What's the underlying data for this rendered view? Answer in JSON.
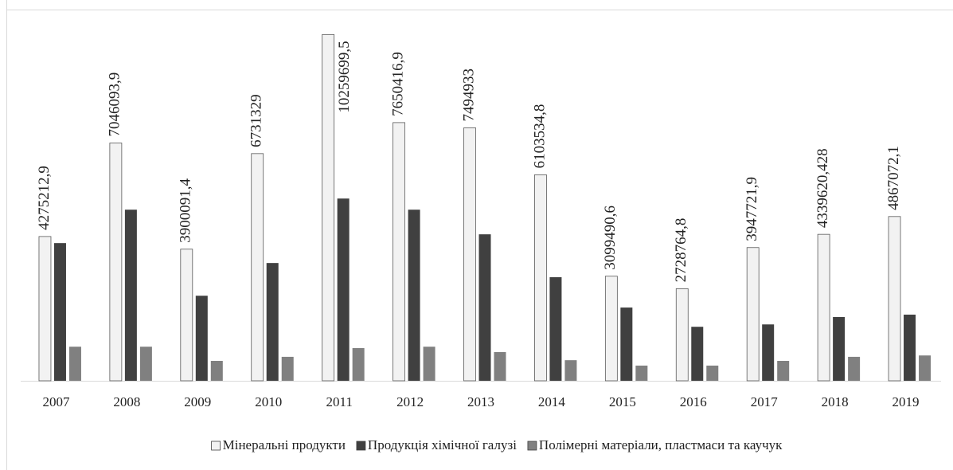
{
  "chart_data": {
    "type": "bar",
    "categories": [
      "2007",
      "2008",
      "2009",
      "2010",
      "2011",
      "2012",
      "2013",
      "2014",
      "2015",
      "2016",
      "2017",
      "2018",
      "2019"
    ],
    "series": [
      {
        "name": "Мінеральні продукти",
        "color": "#f2f2f2",
        "values": [
          4275212.9,
          7046093.9,
          3900091.4,
          6731329,
          10259699.5,
          7650416.9,
          7494933,
          6103534.8,
          3099490.6,
          2728764.8,
          3947721.9,
          4339620.428,
          4867072.1
        ],
        "value_labels": [
          "4275212,9",
          "7046093,9",
          "3900091,4",
          "6731329",
          "10259699,5",
          "7650416,9",
          "7494933",
          "6103534,8",
          "3099490,6",
          "2728764,8",
          "3947721,9",
          "4339620,428",
          "4867072,1"
        ]
      },
      {
        "name": "Продукція хімічної галузі",
        "color": "#404040",
        "values": [
          4080000,
          5070000,
          2520000,
          3490000,
          5400000,
          5070000,
          4340000,
          3070000,
          2170000,
          1600000,
          1670000,
          1890000,
          1960000
        ]
      },
      {
        "name": "Полімерні матеріали, пластмаси та каучук",
        "color": "#808080",
        "values": [
          1010000,
          1010000,
          590000,
          710000,
          970000,
          1010000,
          850000,
          610000,
          450000,
          450000,
          590000,
          710000,
          750000
        ]
      }
    ],
    "ylim": [
      0,
      11000000
    ]
  }
}
